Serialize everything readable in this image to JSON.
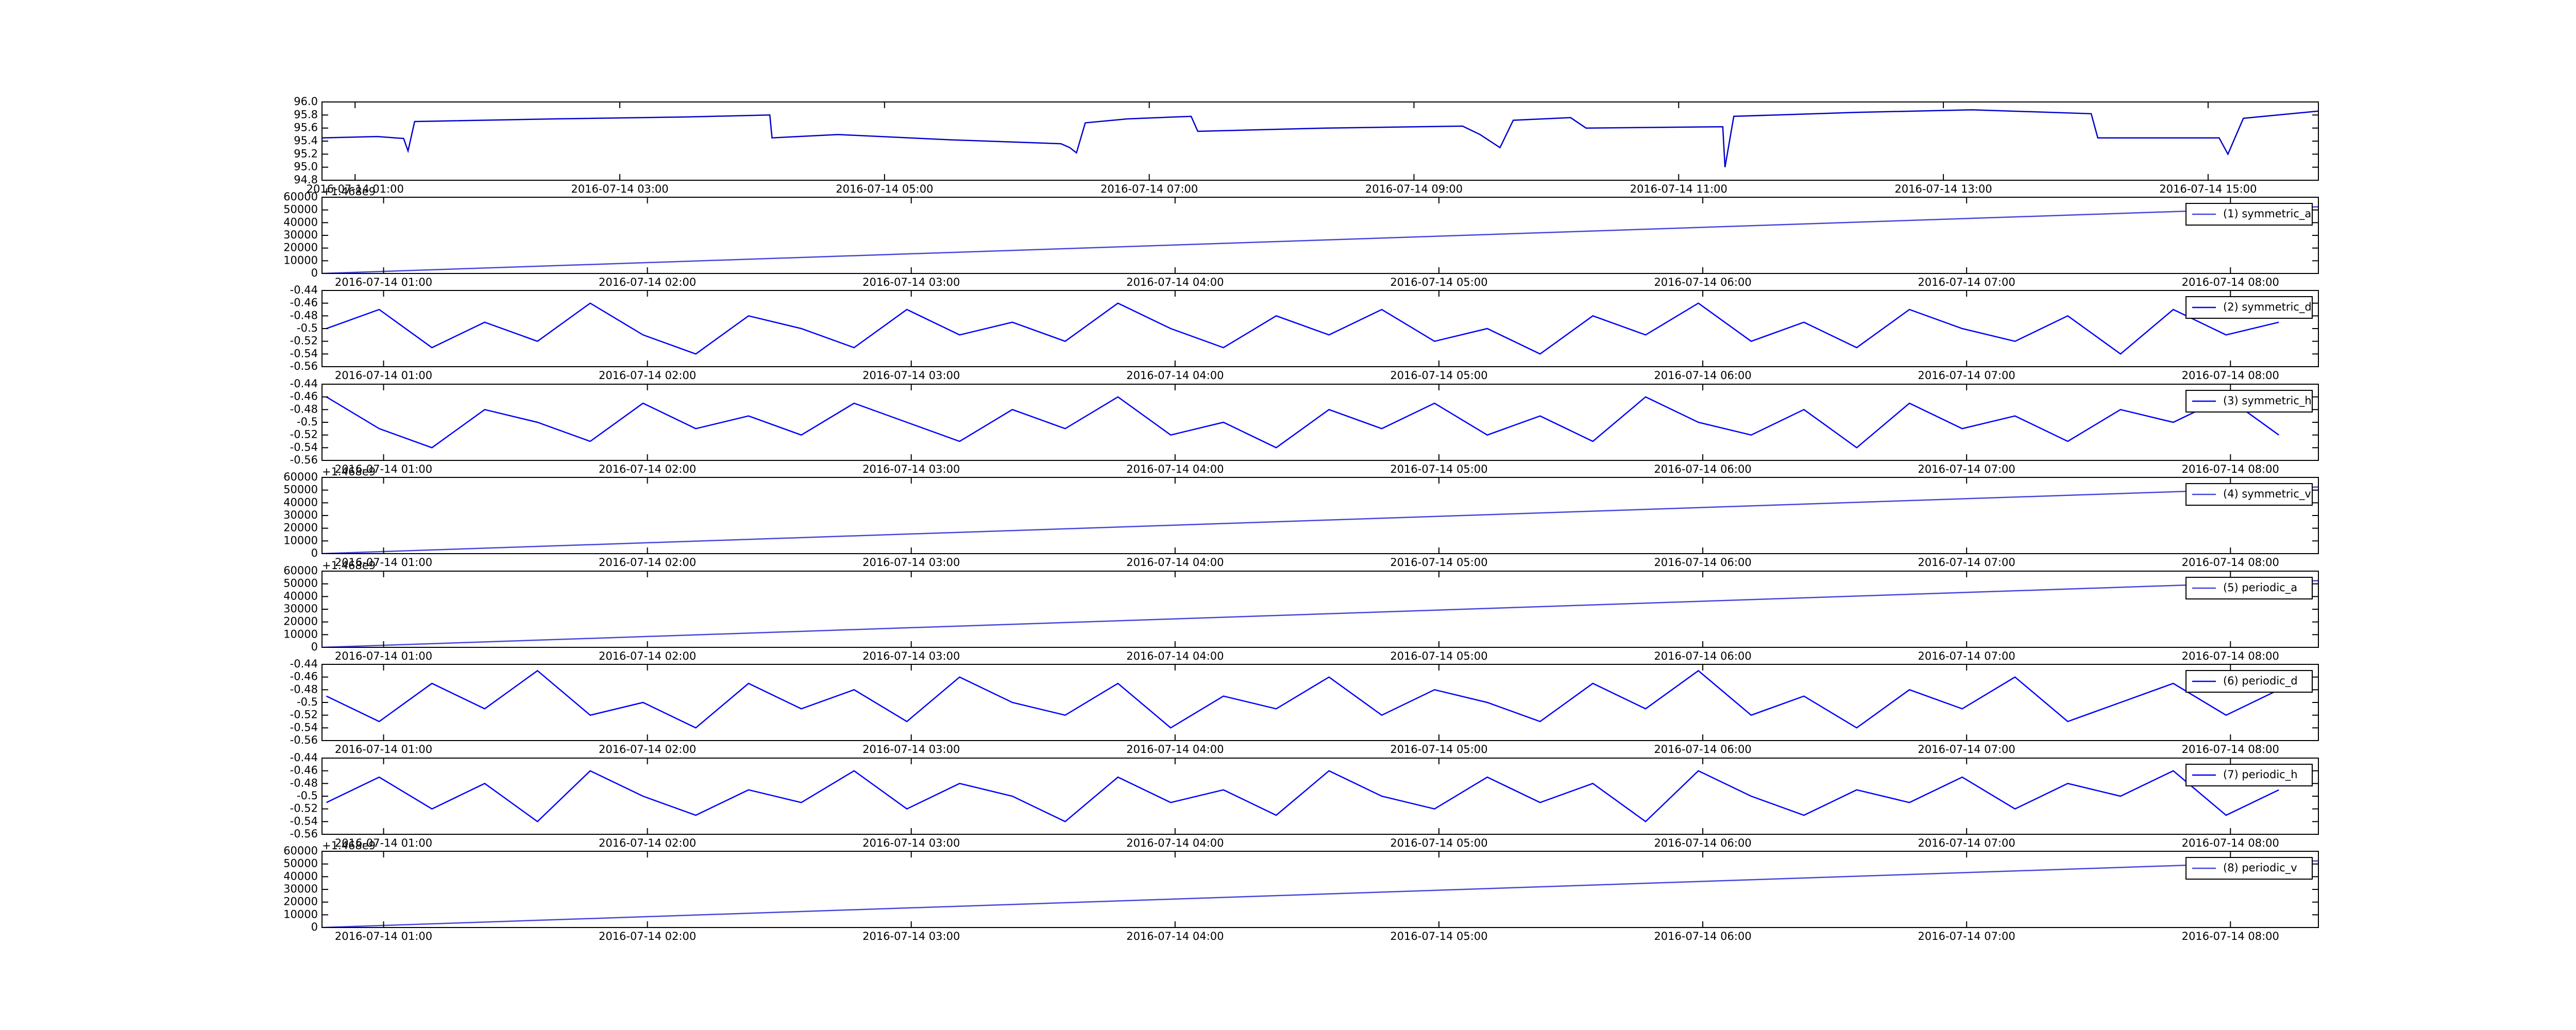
{
  "chart_data": [
    {
      "type": "line",
      "color": "#0000cc",
      "x": [
        "2016-07-14 00:45",
        "2016-07-14 01:10",
        "2016-07-14 01:22",
        "2016-07-14 01:24",
        "2016-07-14 01:27",
        "2016-07-14 02:30",
        "2016-07-14 03:30",
        "2016-07-14 04:08",
        "2016-07-14 04:09",
        "2016-07-14 04:39",
        "2016-07-14 05:30",
        "2016-07-14 06:20",
        "2016-07-14 06:24",
        "2016-07-14 06:27",
        "2016-07-14 06:31",
        "2016-07-14 06:50",
        "2016-07-14 07:19",
        "2016-07-14 07:22",
        "2016-07-14 08:20",
        "2016-07-14 09:22",
        "2016-07-14 09:30",
        "2016-07-14 09:39",
        "2016-07-14 09:45",
        "2016-07-14 10:11",
        "2016-07-14 10:18",
        "2016-07-14 11:20",
        "2016-07-14 11:21",
        "2016-07-14 11:25",
        "2016-07-14 12:20",
        "2016-07-14 13:13",
        "2016-07-14 14:07",
        "2016-07-14 14:10",
        "2016-07-14 15:05",
        "2016-07-14 15:09",
        "2016-07-14 15:16",
        "2016-07-14 15:50"
      ],
      "values": [
        95.45,
        95.47,
        95.44,
        95.25,
        95.7,
        95.74,
        95.77,
        95.8,
        95.45,
        95.5,
        95.42,
        95.36,
        95.3,
        95.22,
        95.68,
        95.74,
        95.78,
        95.55,
        95.6,
        95.63,
        95.5,
        95.3,
        95.72,
        95.76,
        95.6,
        95.62,
        95.0,
        95.78,
        95.84,
        95.88,
        95.82,
        95.45,
        95.45,
        95.2,
        95.75,
        95.86
      ],
      "xlim": [
        "2016-07-14 00:45",
        "2016-07-14 15:50"
      ],
      "xticks": [
        "2016-07-14 01:00",
        "2016-07-14 03:00",
        "2016-07-14 05:00",
        "2016-07-14 07:00",
        "2016-07-14 09:00",
        "2016-07-14 11:00",
        "2016-07-14 13:00",
        "2016-07-14 15:00"
      ],
      "ylim": [
        94.8,
        96.0
      ],
      "yticks": [
        94.8,
        {
          "value": 95,
          "label": "95.0"
        },
        95.2,
        95.4,
        95.6,
        95.8,
        {
          "value": 96,
          "label": "96.0"
        }
      ]
    },
    {
      "type": "line",
      "offset_text": "+1.468e9",
      "legend": "upper right",
      "series": [
        {
          "name": "(1) symmetric_a",
          "color": "#4444dd",
          "x": [
            "2016-07-14 00:46",
            "2016-07-14 08:20"
          ],
          "values": [
            0,
            52500
          ]
        }
      ],
      "xlim": [
        "2016-07-14 00:46",
        "2016-07-14 08:20"
      ],
      "xticks": [
        "2016-07-14 01:00",
        "2016-07-14 02:00",
        "2016-07-14 03:00",
        "2016-07-14 04:00",
        "2016-07-14 05:00",
        "2016-07-14 06:00",
        "2016-07-14 07:00",
        "2016-07-14 08:00"
      ],
      "ylim": [
        0,
        60000
      ],
      "yticks": [
        0,
        10000,
        20000,
        30000,
        40000,
        50000,
        60000
      ]
    },
    {
      "type": "line",
      "legend": "upper right",
      "series": [
        {
          "name": "(2) symmetric_d",
          "color": "#0000ff",
          "x": [
            "2016-07-14 00:47",
            "2016-07-14 00:59",
            "2016-07-14 01:11",
            "2016-07-14 01:23",
            "2016-07-14 01:35",
            "2016-07-14 01:47",
            "2016-07-14 01:59",
            "2016-07-14 02:11",
            "2016-07-14 02:23",
            "2016-07-14 02:35",
            "2016-07-14 02:47",
            "2016-07-14 02:59",
            "2016-07-14 03:11",
            "2016-07-14 03:23",
            "2016-07-14 03:35",
            "2016-07-14 03:47",
            "2016-07-14 03:59",
            "2016-07-14 04:11",
            "2016-07-14 04:23",
            "2016-07-14 04:35",
            "2016-07-14 04:47",
            "2016-07-14 04:59",
            "2016-07-14 05:11",
            "2016-07-14 05:23",
            "2016-07-14 05:35",
            "2016-07-14 05:47",
            "2016-07-14 05:59",
            "2016-07-14 06:11",
            "2016-07-14 06:23",
            "2016-07-14 06:35",
            "2016-07-14 06:47",
            "2016-07-14 06:59",
            "2016-07-14 07:11",
            "2016-07-14 07:23",
            "2016-07-14 07:35",
            "2016-07-14 07:47",
            "2016-07-14 07:59",
            "2016-07-14 08:11"
          ],
          "values": [
            -0.5,
            -0.47,
            -0.53,
            -0.49,
            -0.52,
            -0.46,
            -0.51,
            -0.54,
            -0.48,
            -0.5,
            -0.53,
            -0.47,
            -0.51,
            -0.49,
            -0.52,
            -0.46,
            -0.5,
            -0.53,
            -0.48,
            -0.51,
            -0.47,
            -0.52,
            -0.5,
            -0.54,
            -0.48,
            -0.51,
            -0.46,
            -0.52,
            -0.49,
            -0.53,
            -0.47,
            -0.5,
            -0.52,
            -0.48,
            -0.54,
            -0.47,
            -0.51,
            -0.49
          ]
        }
      ],
      "xlim": [
        "2016-07-14 00:46",
        "2016-07-14 08:20"
      ],
      "xticks": [
        "2016-07-14 01:00",
        "2016-07-14 02:00",
        "2016-07-14 03:00",
        "2016-07-14 04:00",
        "2016-07-14 05:00",
        "2016-07-14 06:00",
        "2016-07-14 07:00",
        "2016-07-14 08:00"
      ],
      "ylim": [
        -0.56,
        -0.44
      ],
      "yticks": [
        -0.56,
        -0.54,
        -0.52,
        -0.5,
        -0.48,
        -0.46,
        -0.44
      ]
    },
    {
      "type": "line",
      "legend": "upper right",
      "series": [
        {
          "name": "(3) symmetric_h",
          "color": "#0000ff",
          "x": [
            "2016-07-14 00:47",
            "2016-07-14 00:59",
            "2016-07-14 01:11",
            "2016-07-14 01:23",
            "2016-07-14 01:35",
            "2016-07-14 01:47",
            "2016-07-14 01:59",
            "2016-07-14 02:11",
            "2016-07-14 02:23",
            "2016-07-14 02:35",
            "2016-07-14 02:47",
            "2016-07-14 02:59",
            "2016-07-14 03:11",
            "2016-07-14 03:23",
            "2016-07-14 03:35",
            "2016-07-14 03:47",
            "2016-07-14 03:59",
            "2016-07-14 04:11",
            "2016-07-14 04:23",
            "2016-07-14 04:35",
            "2016-07-14 04:47",
            "2016-07-14 04:59",
            "2016-07-14 05:11",
            "2016-07-14 05:23",
            "2016-07-14 05:35",
            "2016-07-14 05:47",
            "2016-07-14 05:59",
            "2016-07-14 06:11",
            "2016-07-14 06:23",
            "2016-07-14 06:35",
            "2016-07-14 06:47",
            "2016-07-14 06:59",
            "2016-07-14 07:11",
            "2016-07-14 07:23",
            "2016-07-14 07:35",
            "2016-07-14 07:47",
            "2016-07-14 07:59",
            "2016-07-14 08:11"
          ],
          "values": [
            -0.46,
            -0.51,
            -0.54,
            -0.48,
            -0.5,
            -0.53,
            -0.47,
            -0.51,
            -0.49,
            -0.52,
            -0.47,
            -0.5,
            -0.53,
            -0.48,
            -0.51,
            -0.46,
            -0.52,
            -0.5,
            -0.54,
            -0.48,
            -0.51,
            -0.47,
            -0.52,
            -0.49,
            -0.53,
            -0.46,
            -0.5,
            -0.52,
            -0.48,
            -0.54,
            -0.47,
            -0.51,
            -0.49,
            -0.53,
            -0.48,
            -0.5,
            -0.46,
            -0.52
          ]
        }
      ],
      "xlim": [
        "2016-07-14 00:46",
        "2016-07-14 08:20"
      ],
      "xticks": [
        "2016-07-14 01:00",
        "2016-07-14 02:00",
        "2016-07-14 03:00",
        "2016-07-14 04:00",
        "2016-07-14 05:00",
        "2016-07-14 06:00",
        "2016-07-14 07:00",
        "2016-07-14 08:00"
      ],
      "ylim": [
        -0.56,
        -0.44
      ],
      "yticks": [
        -0.56,
        -0.54,
        -0.52,
        -0.5,
        -0.48,
        -0.46,
        -0.44
      ]
    },
    {
      "type": "line",
      "offset_text": "+1.468e9",
      "legend": "upper right",
      "series": [
        {
          "name": "(4) symmetric_v",
          "color": "#4444dd",
          "x": [
            "2016-07-14 00:46",
            "2016-07-14 08:20"
          ],
          "values": [
            0,
            52500
          ]
        }
      ],
      "xlim": [
        "2016-07-14 00:46",
        "2016-07-14 08:20"
      ],
      "xticks": [
        "2016-07-14 01:00",
        "2016-07-14 02:00",
        "2016-07-14 03:00",
        "2016-07-14 04:00",
        "2016-07-14 05:00",
        "2016-07-14 06:00",
        "2016-07-14 07:00",
        "2016-07-14 08:00"
      ],
      "ylim": [
        0,
        60000
      ],
      "yticks": [
        0,
        10000,
        20000,
        30000,
        40000,
        50000,
        60000
      ]
    },
    {
      "type": "line",
      "offset_text": "+1.468e9",
      "legend": "upper right",
      "series": [
        {
          "name": "(5) periodic_a",
          "color": "#4444dd",
          "x": [
            "2016-07-14 00:46",
            "2016-07-14 08:20"
          ],
          "values": [
            0,
            52500
          ]
        }
      ],
      "xlim": [
        "2016-07-14 00:46",
        "2016-07-14 08:20"
      ],
      "xticks": [
        "2016-07-14 01:00",
        "2016-07-14 02:00",
        "2016-07-14 03:00",
        "2016-07-14 04:00",
        "2016-07-14 05:00",
        "2016-07-14 06:00",
        "2016-07-14 07:00",
        "2016-07-14 08:00"
      ],
      "ylim": [
        0,
        60000
      ],
      "yticks": [
        0,
        10000,
        20000,
        30000,
        40000,
        50000,
        60000
      ]
    },
    {
      "type": "line",
      "legend": "upper right",
      "series": [
        {
          "name": "(6) periodic_d",
          "color": "#0000ff",
          "x": [
            "2016-07-14 00:47",
            "2016-07-14 00:59",
            "2016-07-14 01:11",
            "2016-07-14 01:23",
            "2016-07-14 01:35",
            "2016-07-14 01:47",
            "2016-07-14 01:59",
            "2016-07-14 02:11",
            "2016-07-14 02:23",
            "2016-07-14 02:35",
            "2016-07-14 02:47",
            "2016-07-14 02:59",
            "2016-07-14 03:11",
            "2016-07-14 03:23",
            "2016-07-14 03:35",
            "2016-07-14 03:47",
            "2016-07-14 03:59",
            "2016-07-14 04:11",
            "2016-07-14 04:23",
            "2016-07-14 04:35",
            "2016-07-14 04:47",
            "2016-07-14 04:59",
            "2016-07-14 05:11",
            "2016-07-14 05:23",
            "2016-07-14 05:35",
            "2016-07-14 05:47",
            "2016-07-14 05:59",
            "2016-07-14 06:11",
            "2016-07-14 06:23",
            "2016-07-14 06:35",
            "2016-07-14 06:47",
            "2016-07-14 06:59",
            "2016-07-14 07:11",
            "2016-07-14 07:23",
            "2016-07-14 07:35",
            "2016-07-14 07:47",
            "2016-07-14 07:59",
            "2016-07-14 08:11"
          ],
          "values": [
            -0.49,
            -0.53,
            -0.47,
            -0.51,
            -0.45,
            -0.52,
            -0.5,
            -0.54,
            -0.47,
            -0.51,
            -0.48,
            -0.53,
            -0.46,
            -0.5,
            -0.52,
            -0.47,
            -0.54,
            -0.49,
            -0.51,
            -0.46,
            -0.52,
            -0.48,
            -0.5,
            -0.53,
            -0.47,
            -0.51,
            -0.45,
            -0.52,
            -0.49,
            -0.54,
            -0.48,
            -0.51,
            -0.46,
            -0.53,
            -0.5,
            -0.47,
            -0.52,
            -0.48
          ]
        }
      ],
      "xlim": [
        "2016-07-14 00:46",
        "2016-07-14 08:20"
      ],
      "xticks": [
        "2016-07-14 01:00",
        "2016-07-14 02:00",
        "2016-07-14 03:00",
        "2016-07-14 04:00",
        "2016-07-14 05:00",
        "2016-07-14 06:00",
        "2016-07-14 07:00",
        "2016-07-14 08:00"
      ],
      "ylim": [
        -0.56,
        -0.44
      ],
      "yticks": [
        -0.56,
        -0.54,
        -0.52,
        -0.5,
        -0.48,
        -0.46,
        -0.44
      ]
    },
    {
      "type": "line",
      "legend": "upper right",
      "series": [
        {
          "name": "(7) periodic_h",
          "color": "#0000ff",
          "x": [
            "2016-07-14 00:47",
            "2016-07-14 00:59",
            "2016-07-14 01:11",
            "2016-07-14 01:23",
            "2016-07-14 01:35",
            "2016-07-14 01:47",
            "2016-07-14 01:59",
            "2016-07-14 02:11",
            "2016-07-14 02:23",
            "2016-07-14 02:35",
            "2016-07-14 02:47",
            "2016-07-14 02:59",
            "2016-07-14 03:11",
            "2016-07-14 03:23",
            "2016-07-14 03:35",
            "2016-07-14 03:47",
            "2016-07-14 03:59",
            "2016-07-14 04:11",
            "2016-07-14 04:23",
            "2016-07-14 04:35",
            "2016-07-14 04:47",
            "2016-07-14 04:59",
            "2016-07-14 05:11",
            "2016-07-14 05:23",
            "2016-07-14 05:35",
            "2016-07-14 05:47",
            "2016-07-14 05:59",
            "2016-07-14 06:11",
            "2016-07-14 06:23",
            "2016-07-14 06:35",
            "2016-07-14 06:47",
            "2016-07-14 06:59",
            "2016-07-14 07:11",
            "2016-07-14 07:23",
            "2016-07-14 07:35",
            "2016-07-14 07:47",
            "2016-07-14 07:59",
            "2016-07-14 08:11"
          ],
          "values": [
            -0.51,
            -0.47,
            -0.52,
            -0.48,
            -0.54,
            -0.46,
            -0.5,
            -0.53,
            -0.49,
            -0.51,
            -0.46,
            -0.52,
            -0.48,
            -0.5,
            -0.54,
            -0.47,
            -0.51,
            -0.49,
            -0.53,
            -0.46,
            -0.5,
            -0.52,
            -0.47,
            -0.51,
            -0.48,
            -0.54,
            -0.46,
            -0.5,
            -0.53,
            -0.49,
            -0.51,
            -0.47,
            -0.52,
            -0.48,
            -0.5,
            -0.46,
            -0.53,
            -0.49
          ]
        }
      ],
      "xlim": [
        "2016-07-14 00:46",
        "2016-07-14 08:20"
      ],
      "xticks": [
        "2016-07-14 01:00",
        "2016-07-14 02:00",
        "2016-07-14 03:00",
        "2016-07-14 04:00",
        "2016-07-14 05:00",
        "2016-07-14 06:00",
        "2016-07-14 07:00",
        "2016-07-14 08:00"
      ],
      "ylim": [
        -0.56,
        -0.44
      ],
      "yticks": [
        -0.56,
        -0.54,
        -0.52,
        -0.5,
        -0.48,
        -0.46,
        -0.44
      ]
    },
    {
      "type": "line",
      "offset_text": "+1.468e9",
      "legend": "upper right",
      "series": [
        {
          "name": "(8) periodic_v",
          "color": "#4444dd",
          "x": [
            "2016-07-14 00:46",
            "2016-07-14 08:20"
          ],
          "values": [
            0,
            52500
          ]
        }
      ],
      "xlim": [
        "2016-07-14 00:46",
        "2016-07-14 08:20"
      ],
      "xticks": [
        "2016-07-14 01:00",
        "2016-07-14 02:00",
        "2016-07-14 03:00",
        "2016-07-14 04:00",
        "2016-07-14 05:00",
        "2016-07-14 06:00",
        "2016-07-14 07:00",
        "2016-07-14 08:00"
      ],
      "ylim": [
        0,
        60000
      ],
      "yticks": [
        0,
        10000,
        20000,
        30000,
        40000,
        50000,
        60000
      ]
    }
  ]
}
